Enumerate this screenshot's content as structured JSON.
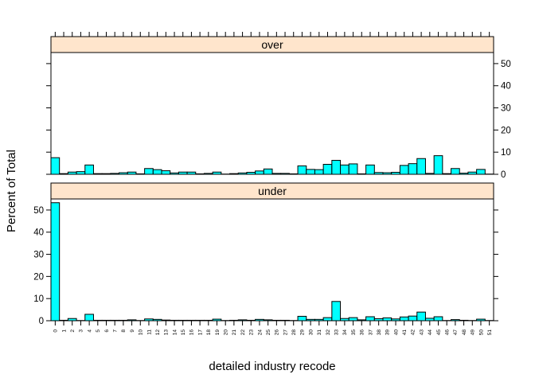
{
  "chart_data": {
    "type": "bar",
    "xlabel": "detailed industry recode",
    "ylabel": "Percent of Total",
    "ylim": [
      0,
      55
    ],
    "yticks": [
      0,
      10,
      20,
      30,
      40,
      50
    ],
    "categories": [
      "0",
      "1",
      "2",
      "3",
      "4",
      "5",
      "6",
      "7",
      "8",
      "9",
      "10",
      "11",
      "12",
      "13",
      "14",
      "15",
      "16",
      "17",
      "18",
      "19",
      "20",
      "21",
      "22",
      "23",
      "24",
      "25",
      "26",
      "27",
      "28",
      "29",
      "30",
      "31",
      "32",
      "33",
      "34",
      "35",
      "36",
      "37",
      "38",
      "39",
      "40",
      "41",
      "42",
      "43",
      "44",
      "45",
      "46",
      "47",
      "48",
      "49",
      "50",
      "51"
    ],
    "colors": {
      "bar_fill": "#00ffff",
      "strip_fill": "#ffe5cc"
    },
    "panels": [
      {
        "name": "over",
        "values": [
          7.5,
          0.3,
          1.0,
          1.2,
          4.2,
          0.3,
          0.3,
          0.4,
          0.7,
          1.0,
          0.2,
          2.6,
          2.1,
          1.6,
          0.6,
          1.0,
          1.0,
          0.2,
          0.4,
          1.0,
          0.1,
          0.3,
          0.6,
          0.9,
          1.5,
          2.4,
          0.4,
          0.4,
          0.2,
          3.8,
          2.2,
          2.1,
          4.5,
          6.3,
          4.2,
          4.7,
          0.2,
          4.2,
          0.8,
          0.7,
          0.9,
          4.0,
          4.8,
          7.1,
          0.4,
          8.4,
          0.3,
          2.6,
          0.5,
          1.0,
          2.2,
          0.1
        ]
      },
      {
        "name": "under",
        "values": [
          53.3,
          0.2,
          1.0,
          0.1,
          2.9,
          0.2,
          0.2,
          0.2,
          0.2,
          0.4,
          0.1,
          0.8,
          0.6,
          0.3,
          0.2,
          0.2,
          0.2,
          0.2,
          0.2,
          0.7,
          0.1,
          0.2,
          0.4,
          0.2,
          0.6,
          0.4,
          0.2,
          0.2,
          0.1,
          2.0,
          0.6,
          0.6,
          1.4,
          8.7,
          1.0,
          1.4,
          0.4,
          1.8,
          0.9,
          1.3,
          0.8,
          1.7,
          2.1,
          3.9,
          1.1,
          1.8,
          0.1,
          0.5,
          0.2,
          0.1,
          0.7,
          0.1
        ]
      }
    ]
  }
}
